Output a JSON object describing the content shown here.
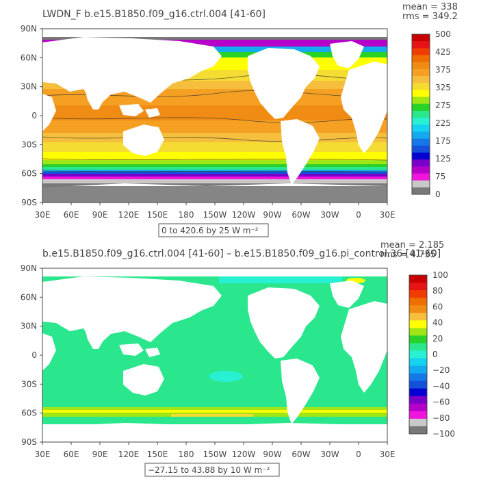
{
  "panels": [
    {
      "title": "LWDN_F b.e15.B1850.f09_g16.ctrl.004 [41-60]",
      "mean_label": "mean = 338",
      "rms_label": "rms = 349.2",
      "lat_ticks": [
        "90N",
        "60N",
        "30N",
        "0",
        "30S",
        "60S",
        "90S"
      ],
      "lon_ticks": [
        "30E",
        "60E",
        "90E",
        "120E",
        "150E",
        "180",
        "150W",
        "120W",
        "90W",
        "60W",
        "30W",
        "0",
        "30E"
      ],
      "range_label": "0 to 420.6 by 25 W m⁻²",
      "colorbar_labels": [
        "500",
        "425",
        "375",
        "325",
        "275",
        "225",
        "175",
        "125",
        "75",
        "0"
      ],
      "colorbar_colors": [
        "#c80000",
        "#e61414",
        "#f03c00",
        "#f06e00",
        "#f08c14",
        "#f5a023",
        "#f5be3c",
        "#f5dc32",
        "#ffff00",
        "#a0e614",
        "#28d228",
        "#2ae68c",
        "#28f0d2",
        "#14d2f0",
        "#14aaf0",
        "#1478e6",
        "#1450dc",
        "#0000d2",
        "#7800c8",
        "#b400c8",
        "#f014dc",
        "#c8c8c8",
        "#787878"
      ]
    },
    {
      "title": "b.e15.B1850.f09_g16.ctrl.004 [41-60] – b.e15.B1850.f09_g16.pi_control.36 [41-60]",
      "mean_label": "mean = 2.185",
      "rms_label": "rms = 4.735",
      "lat_ticks": [
        "90N",
        "60N",
        "30N",
        "0",
        "30S",
        "60S",
        "90S"
      ],
      "lon_ticks": [
        "30E",
        "60E",
        "90E",
        "120E",
        "150E",
        "180",
        "150W",
        "120W",
        "90W",
        "60W",
        "30W",
        "0",
        "30E"
      ],
      "range_label": "−27.15 to 43.88 by 10 W m⁻²",
      "colorbar_labels": [
        "100",
        "80",
        "60",
        "40",
        "20",
        "0",
        "−20",
        "−40",
        "−60",
        "−80",
        "−100"
      ],
      "colorbar_colors": [
        "#c80000",
        "#e61414",
        "#f03c00",
        "#f06e00",
        "#f08c14",
        "#f5be3c",
        "#ffff00",
        "#a0e614",
        "#28d228",
        "#2ae68c",
        "#28f0d2",
        "#14d2f0",
        "#14aaf0",
        "#1478e6",
        "#1450dc",
        "#0000d2",
        "#7800c8",
        "#b400c8",
        "#f014dc",
        "#c8c8c8",
        "#787878"
      ]
    }
  ],
  "colors": {
    "land": "#ffffff",
    "ice": "#787878",
    "diff_ocean": "#2ae68c",
    "diff_pos": "#a0e614",
    "diff_neg": "#28f0d2"
  }
}
